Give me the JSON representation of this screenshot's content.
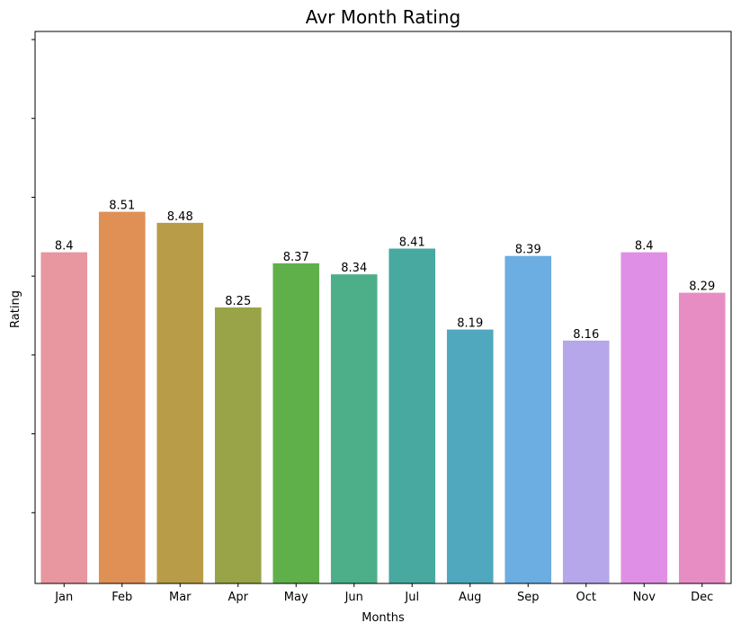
{
  "chart_data": {
    "type": "bar",
    "title": "Avr Month Rating",
    "xlabel": "Months",
    "ylabel": "Rating",
    "categories": [
      "Jan",
      "Feb",
      "Mar",
      "Apr",
      "May",
      "Jun",
      "Jul",
      "Aug",
      "Sep",
      "Oct",
      "Nov",
      "Dec"
    ],
    "values": [
      8.4,
      8.51,
      8.48,
      8.25,
      8.37,
      8.34,
      8.41,
      8.19,
      8.39,
      8.16,
      8.4,
      8.29
    ],
    "data_labels": [
      "8.4",
      "8.51",
      "8.48",
      "8.25",
      "8.37",
      "8.34",
      "8.41",
      "8.19",
      "8.39",
      "8.16",
      "8.4",
      "8.29"
    ],
    "colors": [
      "#e8969f",
      "#e08f55",
      "#b89c48",
      "#99a347",
      "#5fb04a",
      "#4caf8a",
      "#48a9a0",
      "#4fa8bd",
      "#6cade2",
      "#b6a6ea",
      "#e08fe6",
      "#e88dc4"
    ],
    "ylim": [
      7.5,
      9.0
    ],
    "y_tick_count": 8,
    "y_tick_labels_shown": false,
    "grid": false,
    "legend": "none"
  }
}
